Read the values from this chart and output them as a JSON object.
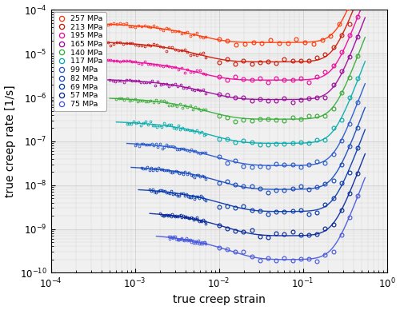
{
  "title": "",
  "xlabel": "true creep strain",
  "ylabel": "true creep rate [1/s]",
  "xlim": [
    0.0001,
    1.0
  ],
  "ylim": [
    1e-10,
    0.0001
  ],
  "series": [
    {
      "label": "257 MPa",
      "color": "#FF3300",
      "base_rate": 1.8e-05,
      "min_strain": 0.0004,
      "line_min_strain": 0.0003,
      "line_max_strain": 0.7,
      "dense_max": 0.007,
      "sparse_min": 0.01,
      "sparse_max": 0.55,
      "k_decay": 250,
      "decay_amp": 1.8,
      "upturn_strain": 0.3,
      "upturn_power": 5.0,
      "upturn_amp": 2.5
    },
    {
      "label": "213 MPa",
      "color": "#CC1100",
      "base_rate": 6.5e-06,
      "min_strain": 0.0004,
      "line_min_strain": 0.0003,
      "line_max_strain": 0.6,
      "dense_max": 0.007,
      "sparse_min": 0.01,
      "sparse_max": 0.45,
      "k_decay": 250,
      "decay_amp": 2.0,
      "upturn_strain": 0.28,
      "upturn_power": 5.0,
      "upturn_amp": 2.5
    },
    {
      "label": "195 MPa",
      "color": "#EE0099",
      "base_rate": 2.5e-06,
      "min_strain": 0.0004,
      "line_min_strain": 0.0003,
      "line_max_strain": 0.55,
      "dense_max": 0.007,
      "sparse_min": 0.01,
      "sparse_max": 0.45,
      "k_decay": 250,
      "decay_amp": 2.0,
      "upturn_strain": 0.28,
      "upturn_power": 5.0,
      "upturn_amp": 2.5
    },
    {
      "label": "165 MPa",
      "color": "#990099",
      "base_rate": 9e-07,
      "min_strain": 0.0005,
      "line_min_strain": 0.0004,
      "line_max_strain": 0.55,
      "dense_max": 0.007,
      "sparse_min": 0.01,
      "sparse_max": 0.45,
      "k_decay": 200,
      "decay_amp": 2.0,
      "upturn_strain": 0.28,
      "upturn_power": 5.0,
      "upturn_amp": 2.5
    },
    {
      "label": "140 MPa",
      "color": "#33AA33",
      "base_rate": 3.2e-07,
      "min_strain": 0.0006,
      "line_min_strain": 0.0005,
      "line_max_strain": 0.55,
      "dense_max": 0.007,
      "sparse_min": 0.01,
      "sparse_max": 0.45,
      "k_decay": 200,
      "decay_amp": 2.2,
      "upturn_strain": 0.28,
      "upturn_power": 5.0,
      "upturn_amp": 2.5
    },
    {
      "label": "117 MPa",
      "color": "#00AAAA",
      "base_rate": 9e-08,
      "min_strain": 0.0008,
      "line_min_strain": 0.0006,
      "line_max_strain": 0.55,
      "dense_max": 0.007,
      "sparse_min": 0.01,
      "sparse_max": 0.45,
      "k_decay": 180,
      "decay_amp": 2.3,
      "upturn_strain": 0.28,
      "upturn_power": 5.0,
      "upturn_amp": 2.5
    },
    {
      "label": "99 MPa",
      "color": "#2255CC",
      "base_rate": 2.8e-08,
      "min_strain": 0.001,
      "line_min_strain": 0.0008,
      "line_max_strain": 0.55,
      "dense_max": 0.007,
      "sparse_min": 0.01,
      "sparse_max": 0.45,
      "k_decay": 160,
      "decay_amp": 2.5,
      "upturn_strain": 0.28,
      "upturn_power": 5.0,
      "upturn_amp": 2.5
    },
    {
      "label": "82 MPa",
      "color": "#1144BB",
      "base_rate": 8e-09,
      "min_strain": 0.0012,
      "line_min_strain": 0.0009,
      "line_max_strain": 0.55,
      "dense_max": 0.007,
      "sparse_min": 0.01,
      "sparse_max": 0.45,
      "k_decay": 150,
      "decay_amp": 2.5,
      "upturn_strain": 0.28,
      "upturn_power": 5.0,
      "upturn_amp": 2.5
    },
    {
      "label": "69 MPa",
      "color": "#0033AA",
      "base_rate": 2.5e-09,
      "min_strain": 0.0015,
      "line_min_strain": 0.0011,
      "line_max_strain": 0.55,
      "dense_max": 0.007,
      "sparse_min": 0.01,
      "sparse_max": 0.45,
      "k_decay": 140,
      "decay_amp": 2.5,
      "upturn_strain": 0.28,
      "upturn_power": 5.0,
      "upturn_amp": 2.5
    },
    {
      "label": "57 MPa",
      "color": "#002299",
      "base_rate": 7e-10,
      "min_strain": 0.002,
      "line_min_strain": 0.0015,
      "line_max_strain": 0.55,
      "dense_max": 0.007,
      "sparse_min": 0.01,
      "sparse_max": 0.45,
      "k_decay": 130,
      "decay_amp": 2.7,
      "upturn_strain": 0.28,
      "upturn_power": 5.0,
      "upturn_amp": 2.5
    },
    {
      "label": "75 MPa",
      "color": "#4455DD",
      "base_rate": 2e-10,
      "min_strain": 0.0025,
      "line_min_strain": 0.0018,
      "line_max_strain": 0.55,
      "dense_max": 0.007,
      "sparse_min": 0.01,
      "sparse_max": 0.45,
      "k_decay": 120,
      "decay_amp": 3.0,
      "upturn_strain": 0.28,
      "upturn_power": 5.0,
      "upturn_amp": 2.5
    }
  ],
  "background_color": "#f0f0f0",
  "grid_color": "#bbbbbb"
}
